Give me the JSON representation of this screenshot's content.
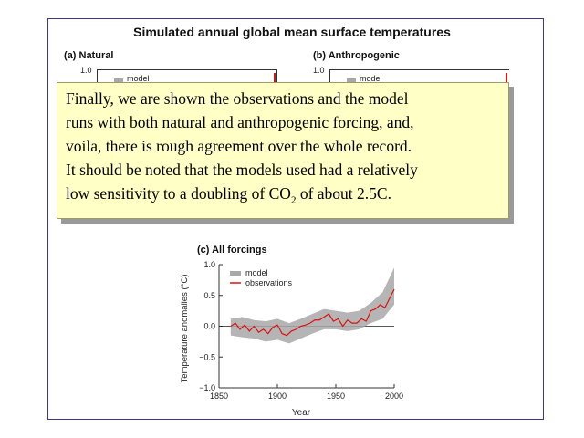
{
  "slide": {
    "title": "Simulated annual global mean surface temperatures",
    "panel_a_title": "(a) Natural",
    "panel_b_title": "(b) Anthropogenic",
    "panel_a_tick": "1.0",
    "panel_b_tick": "1.0",
    "panel_a_legend": "model",
    "panel_b_legend": "model"
  },
  "callout": {
    "line1": "Finally, we are shown the observations and the model",
    "line2": "runs with both natural and anthropogenic forcing, and,",
    "line3": "voila, there is rough agreement over the whole record.",
    "line4": "It should be noted that the models used had a relatively",
    "line5_pre": "low sensitivity to a doubling of CO",
    "line5_sub": "2",
    "line5_post": " of about 2.5C."
  },
  "chart_data": {
    "type": "line",
    "title": "(c) All forcings",
    "xlabel": "Year",
    "ylabel": "Temperature anomalies (°C)",
    "xlim": [
      1850,
      2000
    ],
    "ylim": [
      -1.0,
      1.0
    ],
    "xticks": [
      "1850",
      "1900",
      "1950",
      "2000"
    ],
    "yticks": [
      "1.0",
      "0.5",
      "0.0",
      "−0.5",
      "−1.0"
    ],
    "legend": [
      {
        "name": "model",
        "color": "#a8a8a8"
      },
      {
        "name": "observations",
        "color": "#dd1111"
      }
    ],
    "series": [
      {
        "name": "observations",
        "color": "#dd1111",
        "x": [
          1860,
          1864,
          1868,
          1872,
          1876,
          1880,
          1884,
          1888,
          1892,
          1896,
          1900,
          1904,
          1908,
          1912,
          1916,
          1920,
          1924,
          1928,
          1932,
          1936,
          1940,
          1944,
          1948,
          1952,
          1956,
          1960,
          1964,
          1968,
          1972,
          1976,
          1980,
          1984,
          1988,
          1992,
          1996,
          2000
        ],
        "values": [
          0.0,
          0.05,
          -0.05,
          0.02,
          -0.08,
          0.0,
          -0.1,
          -0.05,
          -0.12,
          -0.02,
          0.02,
          -0.12,
          -0.15,
          -0.08,
          -0.05,
          0.0,
          0.02,
          0.05,
          0.1,
          0.1,
          0.15,
          0.2,
          0.08,
          0.12,
          0.0,
          0.1,
          0.05,
          0.05,
          0.12,
          0.08,
          0.25,
          0.28,
          0.35,
          0.3,
          0.45,
          0.6
        ]
      },
      {
        "name": "model",
        "color": "#a8a8a8",
        "x": [
          1860,
          1870,
          1880,
          1890,
          1900,
          1910,
          1920,
          1930,
          1940,
          1950,
          1960,
          1970,
          1980,
          1990,
          2000
        ],
        "low": [
          -0.15,
          -0.18,
          -0.2,
          -0.25,
          -0.22,
          -0.28,
          -0.2,
          -0.12,
          -0.05,
          -0.05,
          -0.08,
          -0.05,
          0.05,
          0.12,
          0.35
        ],
        "high": [
          0.12,
          0.15,
          0.1,
          0.08,
          0.12,
          0.05,
          0.12,
          0.2,
          0.28,
          0.25,
          0.22,
          0.25,
          0.38,
          0.55,
          0.95
        ]
      }
    ]
  }
}
